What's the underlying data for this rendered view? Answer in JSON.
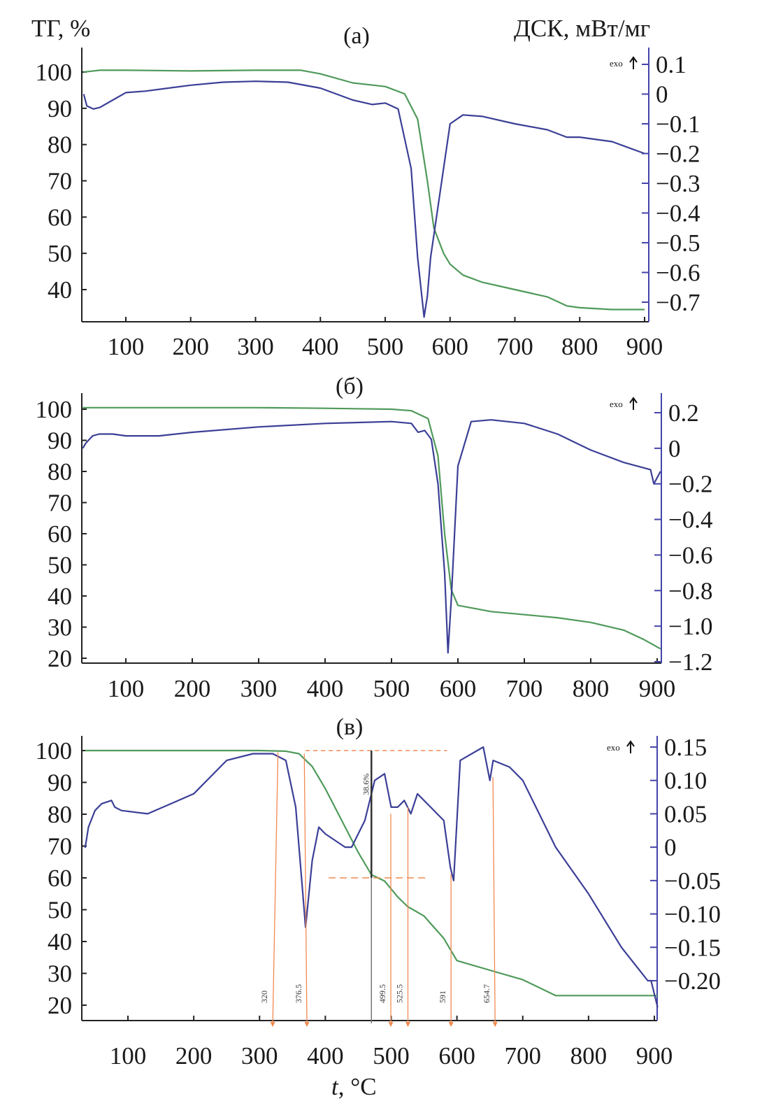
{
  "figure": {
    "left_axis_title": "ТГ, %",
    "right_axis_title": "ДСК, мВт/мг",
    "x_axis_title_italic": "t",
    "x_axis_title_rest": ", °C",
    "exo_label": "exo"
  },
  "colors": {
    "tg": "#4f9a5a",
    "dsc": "#3b3f96",
    "axis": "#4444aa",
    "annotation": "#f08a50",
    "marker": "#333333"
  },
  "chart_data": [
    {
      "type": "line",
      "panel_label": "(а)",
      "x_ticks": [
        100,
        200,
        300,
        400,
        500,
        600,
        700,
        800,
        900
      ],
      "xlim": [
        35,
        910
      ],
      "left_ticks": [
        100,
        90,
        80,
        70,
        60,
        50,
        40
      ],
      "right_ticks": [
        "0.1",
        "0",
        "−0.1",
        "−0.2",
        "−0.3",
        "−0.4",
        "−0.5",
        "−0.6",
        "−0.7"
      ],
      "series": [
        {
          "axis": "left",
          "color": "tg",
          "x": [
            35,
            60,
            100,
            200,
            300,
            370,
            400,
            450,
            500,
            530,
            550,
            565,
            575,
            590,
            600,
            620,
            650,
            700,
            750,
            780,
            800,
            850,
            900
          ],
          "y": [
            100,
            100.5,
            100.5,
            100.3,
            100.5,
            100.5,
            99.5,
            97,
            96,
            94,
            87,
            70,
            57,
            50,
            47,
            44,
            42,
            40,
            38,
            35.5,
            35,
            34.5,
            34.5
          ]
        },
        {
          "axis": "right",
          "color": "dsc",
          "x": [
            35,
            40,
            50,
            60,
            80,
            100,
            130,
            200,
            250,
            300,
            350,
            400,
            450,
            480,
            500,
            520,
            540,
            550,
            560,
            565,
            570,
            580,
            600,
            620,
            650,
            700,
            750,
            780,
            800,
            850,
            900
          ],
          "y": [
            0.0,
            -0.04,
            -0.05,
            -0.045,
            -0.02,
            0.005,
            0.01,
            0.03,
            0.04,
            0.043,
            0.04,
            0.02,
            -0.02,
            -0.035,
            -0.03,
            -0.05,
            -0.25,
            -0.55,
            -0.75,
            -0.68,
            -0.55,
            -0.4,
            -0.1,
            -0.07,
            -0.075,
            -0.1,
            -0.12,
            -0.145,
            -0.145,
            -0.16,
            -0.2
          ]
        }
      ]
    },
    {
      "type": "line",
      "panel_label": "(б)",
      "x_ticks": [
        100,
        200,
        300,
        400,
        500,
        600,
        700,
        800,
        900
      ],
      "xlim": [
        35,
        910
      ],
      "left_ticks": [
        100,
        90,
        80,
        70,
        60,
        50,
        40,
        30,
        20
      ],
      "right_ticks": [
        "0.2",
        "0",
        "−0.2",
        "−0.4",
        "−0.6",
        "−0.8",
        "−1.0",
        "−1.2"
      ],
      "series": [
        {
          "axis": "left",
          "color": "tg",
          "x": [
            35,
            100,
            200,
            300,
            400,
            500,
            530,
            555,
            570,
            580,
            590,
            600,
            650,
            700,
            750,
            800,
            850,
            880,
            905
          ],
          "y": [
            100.5,
            100.5,
            100.5,
            100.5,
            100.3,
            100,
            99.5,
            97,
            85,
            60,
            42,
            37,
            35,
            34,
            33,
            31.5,
            29,
            26,
            23
          ]
        },
        {
          "axis": "right",
          "color": "dsc",
          "x": [
            35,
            40,
            50,
            60,
            80,
            100,
            150,
            200,
            300,
            400,
            500,
            530,
            540,
            550,
            560,
            570,
            580,
            585,
            590,
            600,
            620,
            650,
            700,
            750,
            800,
            850,
            890,
            895,
            905
          ],
          "y": [
            0.0,
            0.03,
            0.07,
            0.08,
            0.08,
            0.07,
            0.07,
            0.09,
            0.12,
            0.14,
            0.15,
            0.14,
            0.09,
            0.1,
            0.05,
            -0.2,
            -0.7,
            -1.15,
            -0.85,
            -0.1,
            0.15,
            0.16,
            0.14,
            0.08,
            -0.01,
            -0.08,
            -0.12,
            -0.2,
            -0.13
          ]
        }
      ]
    },
    {
      "type": "line",
      "panel_label": "(в)",
      "x_ticks": [
        100,
        200,
        300,
        400,
        500,
        600,
        700,
        800,
        900
      ],
      "xlim": [
        35,
        910
      ],
      "left_ticks": [
        100,
        90,
        80,
        70,
        60,
        50,
        40,
        30,
        20
      ],
      "right_ticks": [
        "0.15",
        "0.10",
        "0.05",
        "0",
        "−0.05",
        "−0.10",
        "−0.15",
        "−0.20"
      ],
      "series": [
        {
          "axis": "left",
          "color": "tg",
          "x": [
            35,
            200,
            300,
            340,
            360,
            380,
            400,
            420,
            450,
            470,
            490,
            510,
            525,
            550,
            580,
            600,
            650,
            700,
            750,
            800,
            850,
            905
          ],
          "y": [
            100,
            100,
            100,
            99.8,
            99,
            95,
            88,
            80,
            68,
            61,
            59,
            54,
            51,
            48,
            41,
            34,
            31,
            28,
            23,
            23,
            23,
            23
          ]
        },
        {
          "axis": "right",
          "color": "dsc",
          "x": [
            35,
            40,
            50,
            60,
            75,
            80,
            90,
            130,
            200,
            250,
            290,
            320,
            340,
            355,
            370,
            380,
            390,
            400,
            430,
            440,
            460,
            475,
            490,
            500,
            510,
            520,
            530,
            540,
            560,
            580,
            590,
            595,
            605,
            640,
            650,
            655,
            680,
            700,
            750,
            800,
            850,
            890,
            895,
            905
          ],
          "y": [
            -0.001,
            0.03,
            0.055,
            0.065,
            0.07,
            0.06,
            0.055,
            0.05,
            0.08,
            0.13,
            0.14,
            0.14,
            0.13,
            0.06,
            -0.12,
            -0.02,
            0.03,
            0.02,
            -0.0,
            0.0,
            0.04,
            0.1,
            0.11,
            0.06,
            0.06,
            0.07,
            0.05,
            0.08,
            0.06,
            0.04,
            -0.03,
            -0.05,
            0.13,
            0.15,
            0.1,
            0.13,
            0.12,
            0.1,
            0.0,
            -0.07,
            -0.15,
            -0.2,
            -0.2,
            -0.24
          ]
        }
      ],
      "annotations": {
        "mass_loss_label": "38.6%",
        "temperatures": [
          "320",
          "376.5",
          "499.5",
          "525.5",
          "591",
          "654.7"
        ]
      }
    }
  ]
}
